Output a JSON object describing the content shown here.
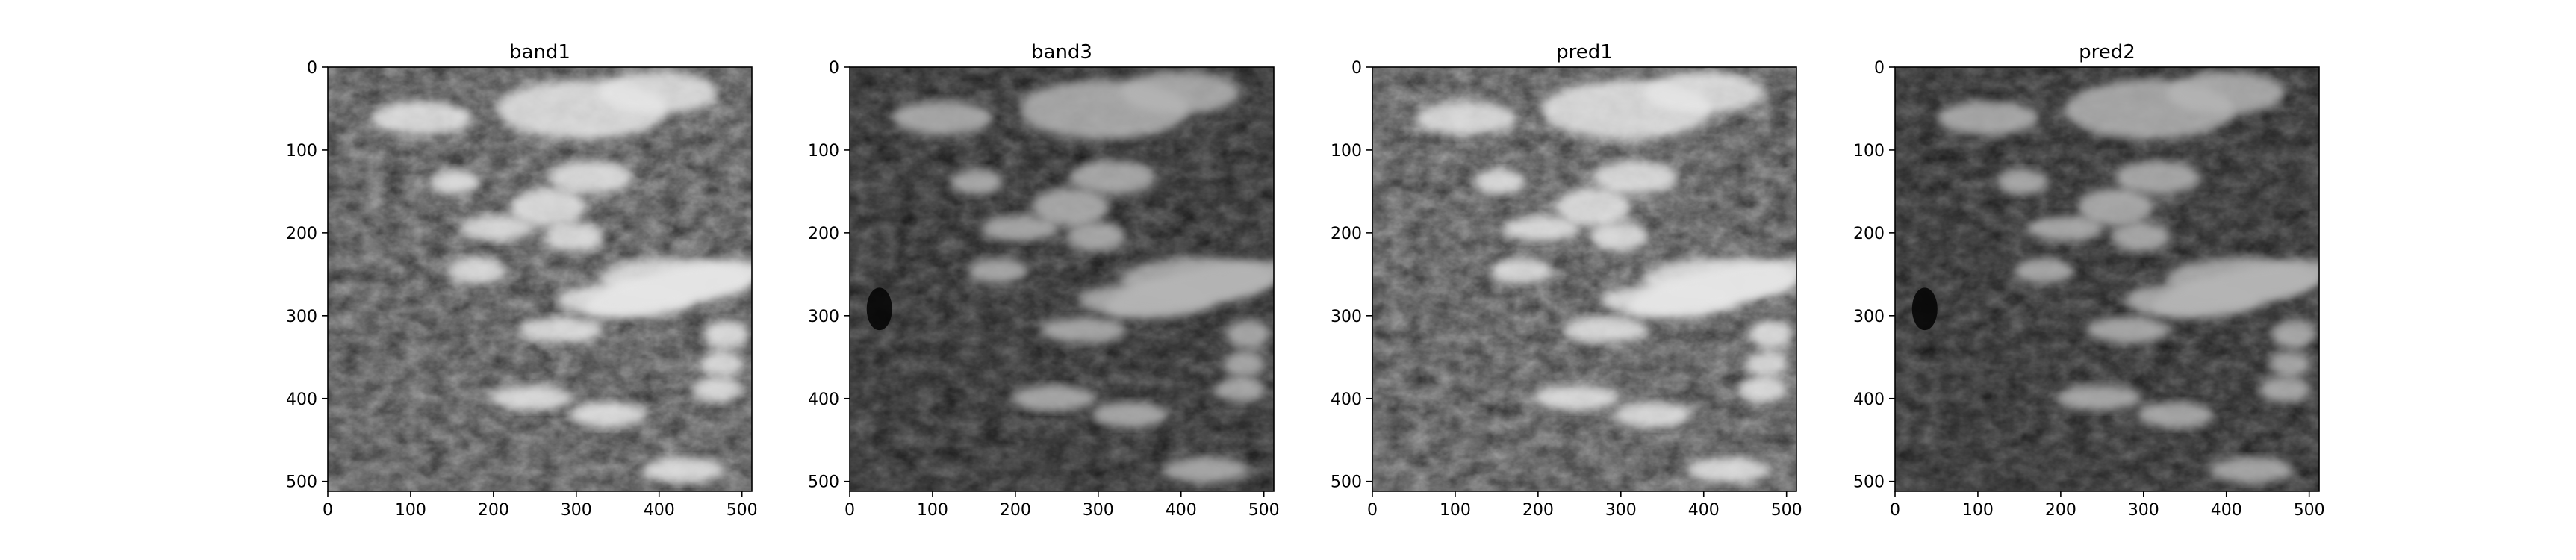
{
  "figure": {
    "panels": [
      {
        "title": "band1",
        "tone": "bright"
      },
      {
        "title": "band3",
        "tone": "dark"
      },
      {
        "title": "pred1",
        "tone": "bright"
      },
      {
        "title": "pred2",
        "tone": "dark"
      }
    ],
    "x_ticks": [
      "0",
      "100",
      "200",
      "300",
      "400",
      "500"
    ],
    "y_ticks": [
      "0",
      "100",
      "200",
      "300",
      "400",
      "500"
    ],
    "axis_range": [
      0,
      512
    ],
    "colormap": "gray"
  }
}
